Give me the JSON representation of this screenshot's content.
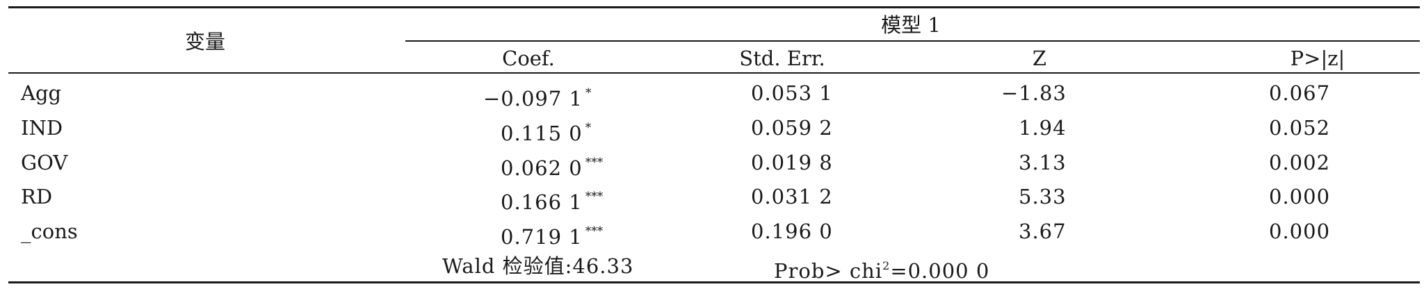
{
  "table": {
    "stub_header": "变量",
    "group_header": "模型 1",
    "columns": [
      "Coef.",
      "Std. Err.",
      "Z",
      "P>|z|"
    ],
    "rows": [
      {
        "var": "Agg",
        "coef": "−0.097 1",
        "sig": "*",
        "se": "0.053 1",
        "z": "−1.83",
        "p": "0.067"
      },
      {
        "var": "IND",
        "coef": "0.115 0",
        "sig": "*",
        "se": "0.059 2",
        "z": "1.94",
        "p": "0.052"
      },
      {
        "var": "GOV",
        "coef": "0.062 0",
        "sig": "***",
        "se": "0.019 8",
        "z": "3.13",
        "p": "0.002"
      },
      {
        "var": "RD",
        "coef": "0.166 1",
        "sig": "***",
        "se": "0.031 2",
        "z": "5.33",
        "p": "0.000"
      },
      {
        "var": "_cons",
        "coef": "0.719 1",
        "sig": "***",
        "se": "0.196 0",
        "z": "3.67",
        "p": "0.000"
      }
    ],
    "footer": {
      "wald_label": "Wald 检验值:",
      "wald_value": "46.33",
      "prob_prefix": "Prob> chi",
      "prob_sup": "2",
      "prob_suffix": "=0.000 0"
    }
  }
}
